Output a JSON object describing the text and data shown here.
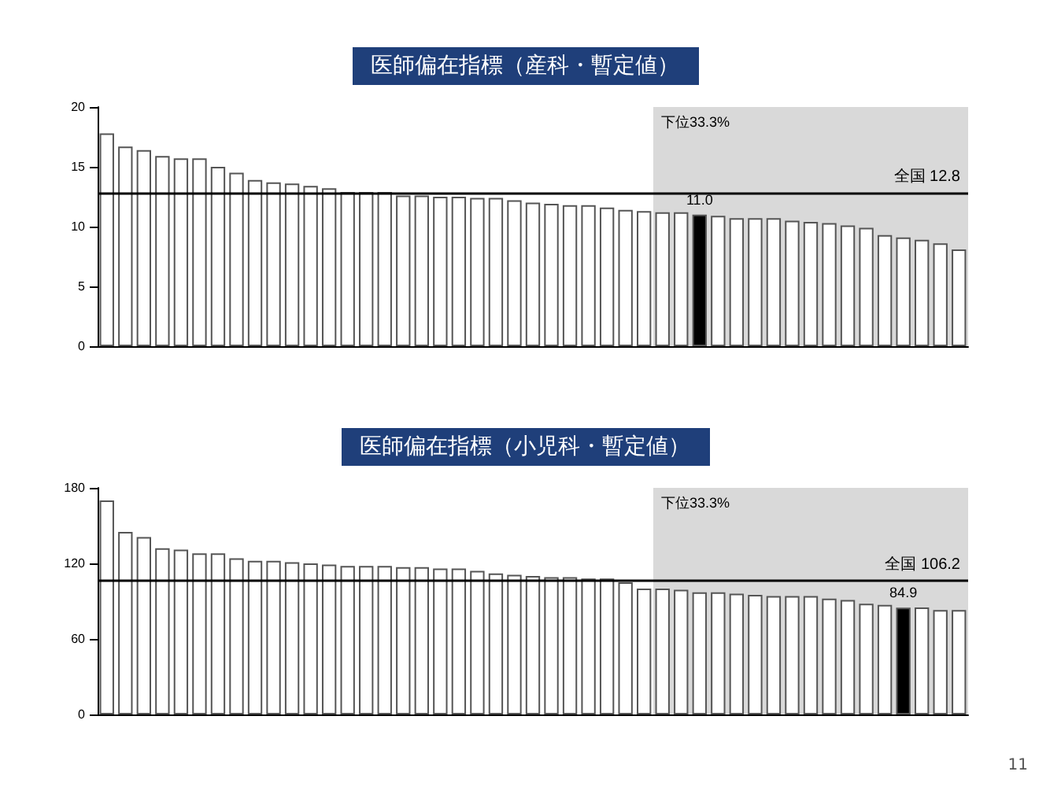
{
  "chart_data": [
    {
      "type": "bar",
      "title": "医師偏在指標（産科・暫定値）",
      "categories": [
        null,
        null,
        null,
        null,
        null,
        null,
        null,
        null,
        null,
        null,
        null,
        null,
        null,
        null,
        null,
        null,
        null,
        null,
        null,
        null,
        null,
        null,
        null,
        null,
        null,
        null,
        null,
        null,
        null,
        null,
        null,
        null,
        null,
        null,
        null,
        null,
        null,
        null,
        null,
        null,
        null,
        null,
        null,
        null,
        null,
        null,
        null
      ],
      "values": [
        17.8,
        16.7,
        16.4,
        15.9,
        15.7,
        15.7,
        15.0,
        14.5,
        13.9,
        13.7,
        13.6,
        13.4,
        13.2,
        12.9,
        12.9,
        12.9,
        12.6,
        12.6,
        12.5,
        12.5,
        12.4,
        12.4,
        12.2,
        12.0,
        11.9,
        11.8,
        11.8,
        11.6,
        11.4,
        11.3,
        11.2,
        11.2,
        11.0,
        10.9,
        10.7,
        10.7,
        10.7,
        10.5,
        10.4,
        10.3,
        10.1,
        9.9,
        9.3,
        9.1,
        8.9,
        8.6,
        8.1
      ],
      "colors": [
        "#ffffff",
        "#ffffff",
        "#ffffff",
        "#ffffff",
        "#ffffff",
        "#ffffff",
        "#ffffff",
        "#ffffff",
        "#ffffff",
        "#ffffff",
        "#ffffff",
        "#ffffff",
        "#ffffff",
        "#ffffff",
        "#ffffff",
        "#ffffff",
        "#ffffff",
        "#ffffff",
        "#ffffff",
        "#ffffff",
        "#ffffff",
        "#ffffff",
        "#ffffff",
        "#ffffff",
        "#ffffff",
        "#ffffff",
        "#ffffff",
        "#ffffff",
        "#ffffff",
        "#ffffff",
        "#ffffff",
        "#ffffff",
        "#000000",
        "#ffffff",
        "#ffffff",
        "#ffffff",
        "#ffffff",
        "#ffffff",
        "#ffffff",
        "#ffffff",
        "#ffffff",
        "#ffffff",
        "#ffffff",
        "#ffffff",
        "#ffffff",
        "#ffffff",
        "#ffffff"
      ],
      "value_labels": [
        null,
        null,
        null,
        null,
        null,
        null,
        null,
        null,
        null,
        null,
        null,
        null,
        null,
        null,
        null,
        null,
        null,
        null,
        null,
        null,
        null,
        null,
        null,
        null,
        null,
        null,
        null,
        null,
        null,
        null,
        null,
        null,
        "11.0",
        null,
        null,
        null,
        null,
        null,
        null,
        null,
        null,
        null,
        null,
        null,
        null,
        null,
        null
      ],
      "ylim": [
        0,
        20
      ],
      "yticks": [
        0,
        5,
        10,
        15,
        20
      ],
      "grid": false,
      "ref_lines": [
        {
          "axis": "y",
          "value": 12.8,
          "label": "全国 12.8",
          "color": "#000000"
        }
      ],
      "annotations": [
        "下位33.3%"
      ]
    },
    {
      "type": "bar",
      "title": "医師偏在指標（小児科・暫定値）",
      "categories": [
        null,
        null,
        null,
        null,
        null,
        null,
        null,
        null,
        null,
        null,
        null,
        null,
        null,
        null,
        null,
        null,
        null,
        null,
        null,
        null,
        null,
        null,
        null,
        null,
        null,
        null,
        null,
        null,
        null,
        null,
        null,
        null,
        null,
        null,
        null,
        null,
        null,
        null,
        null,
        null,
        null,
        null,
        null,
        null,
        null,
        null,
        null
      ],
      "values": [
        170,
        145,
        141,
        132,
        131,
        128,
        128,
        124,
        122,
        122,
        121,
        120,
        119,
        118,
        118,
        118,
        117,
        117,
        116,
        116,
        114,
        112,
        111,
        110,
        109,
        109,
        108,
        108,
        105,
        100,
        100,
        99,
        97,
        97,
        96,
        95,
        94,
        94,
        94,
        92,
        91,
        88,
        87,
        84.9,
        85,
        83,
        83
      ],
      "colors": [
        "#ffffff",
        "#ffffff",
        "#ffffff",
        "#ffffff",
        "#ffffff",
        "#ffffff",
        "#ffffff",
        "#ffffff",
        "#ffffff",
        "#ffffff",
        "#ffffff",
        "#ffffff",
        "#ffffff",
        "#ffffff",
        "#ffffff",
        "#ffffff",
        "#ffffff",
        "#ffffff",
        "#ffffff",
        "#ffffff",
        "#ffffff",
        "#ffffff",
        "#ffffff",
        "#ffffff",
        "#ffffff",
        "#ffffff",
        "#ffffff",
        "#ffffff",
        "#ffffff",
        "#ffffff",
        "#ffffff",
        "#ffffff",
        "#ffffff",
        "#ffffff",
        "#ffffff",
        "#ffffff",
        "#ffffff",
        "#ffffff",
        "#ffffff",
        "#ffffff",
        "#ffffff",
        "#ffffff",
        "#ffffff",
        "#000000",
        "#ffffff",
        "#ffffff",
        "#ffffff"
      ],
      "value_labels": [
        null,
        null,
        null,
        null,
        null,
        null,
        null,
        null,
        null,
        null,
        null,
        null,
        null,
        null,
        null,
        null,
        null,
        null,
        null,
        null,
        null,
        null,
        null,
        null,
        null,
        null,
        null,
        null,
        null,
        null,
        null,
        null,
        null,
        null,
        null,
        null,
        null,
        null,
        null,
        null,
        null,
        null,
        null,
        "84.9",
        null,
        null,
        null
      ],
      "ylim": [
        0,
        180
      ],
      "yticks": [
        0,
        60,
        120,
        180
      ],
      "grid": false,
      "ref_lines": [
        {
          "axis": "y",
          "value": 106.2,
          "label": "全国 106.2",
          "color": "#000000"
        }
      ],
      "annotations": [
        "下位33.3%",
        "11"
      ]
    }
  ]
}
